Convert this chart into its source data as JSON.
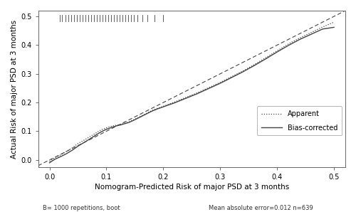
{
  "xlabel": "Nomogram-Predicted Risk of major PSD at 3 months",
  "ylabel": "Actual Risk of major PSD at 3 months",
  "xlim": [
    -0.02,
    0.52
  ],
  "ylim": [
    -0.025,
    0.52
  ],
  "xticks": [
    0.0,
    0.1,
    0.2,
    0.3,
    0.4,
    0.5
  ],
  "yticks": [
    0.0,
    0.1,
    0.2,
    0.3,
    0.4,
    0.5
  ],
  "footer_left": "B= 1000 repetitions, boot",
  "footer_right": "Mean absolute error=0.012 n=639",
  "legend_apparent": "Apparent",
  "legend_bias": "Bias-corrected",
  "rug_x": [
    0.018,
    0.022,
    0.028,
    0.033,
    0.038,
    0.043,
    0.048,
    0.053,
    0.058,
    0.063,
    0.068,
    0.073,
    0.078,
    0.083,
    0.088,
    0.093,
    0.098,
    0.103,
    0.108,
    0.113,
    0.118,
    0.123,
    0.128,
    0.133,
    0.138,
    0.143,
    0.148,
    0.155,
    0.163,
    0.172,
    0.185,
    0.2
  ],
  "apparent_x": [
    0.0,
    0.005,
    0.01,
    0.02,
    0.03,
    0.04,
    0.05,
    0.06,
    0.07,
    0.08,
    0.09,
    0.095,
    0.1,
    0.105,
    0.11,
    0.115,
    0.12,
    0.125,
    0.13,
    0.14,
    0.15,
    0.16,
    0.17,
    0.18,
    0.19,
    0.2,
    0.22,
    0.24,
    0.26,
    0.28,
    0.3,
    0.32,
    0.34,
    0.36,
    0.38,
    0.4,
    0.42,
    0.44,
    0.46,
    0.48,
    0.5
  ],
  "apparent_y": [
    -0.005,
    0.002,
    0.008,
    0.018,
    0.03,
    0.042,
    0.057,
    0.068,
    0.08,
    0.092,
    0.104,
    0.108,
    0.112,
    0.115,
    0.118,
    0.12,
    0.122,
    0.124,
    0.127,
    0.133,
    0.142,
    0.152,
    0.162,
    0.172,
    0.18,
    0.187,
    0.202,
    0.218,
    0.234,
    0.252,
    0.27,
    0.29,
    0.31,
    0.332,
    0.356,
    0.38,
    0.404,
    0.425,
    0.444,
    0.463,
    0.48
  ],
  "biascorr_x": [
    0.0,
    0.005,
    0.01,
    0.02,
    0.03,
    0.04,
    0.05,
    0.06,
    0.07,
    0.08,
    0.09,
    0.095,
    0.1,
    0.105,
    0.11,
    0.115,
    0.12,
    0.125,
    0.13,
    0.14,
    0.15,
    0.16,
    0.17,
    0.18,
    0.19,
    0.2,
    0.22,
    0.24,
    0.26,
    0.28,
    0.3,
    0.32,
    0.34,
    0.36,
    0.38,
    0.4,
    0.42,
    0.44,
    0.46,
    0.48,
    0.5
  ],
  "biascorr_y": [
    -0.01,
    -0.003,
    0.003,
    0.012,
    0.022,
    0.034,
    0.048,
    0.06,
    0.072,
    0.085,
    0.097,
    0.102,
    0.107,
    0.11,
    0.114,
    0.117,
    0.12,
    0.122,
    0.125,
    0.131,
    0.14,
    0.15,
    0.16,
    0.17,
    0.178,
    0.185,
    0.199,
    0.215,
    0.231,
    0.249,
    0.267,
    0.287,
    0.307,
    0.329,
    0.352,
    0.376,
    0.399,
    0.42,
    0.438,
    0.456,
    0.462
  ],
  "line_color": "#444444",
  "bg_color": "#ffffff",
  "xlabel_fontsize": 7.5,
  "ylabel_fontsize": 7.5,
  "tick_fontsize": 7,
  "footer_fontsize": 6
}
